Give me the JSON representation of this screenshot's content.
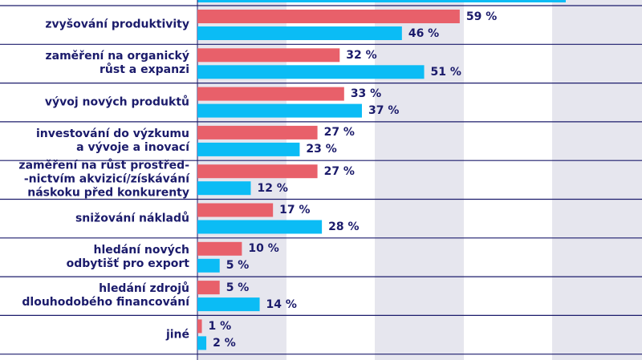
{
  "chart_data": {
    "type": "bar",
    "orientation": "horizontal",
    "categories": [
      "zvyšování produktivity",
      "zaměření na organický\nrůst a expanzi",
      "vývoj nových produktů",
      "investování do výzkumu\na vývoje a inovací",
      "zaměření na růst prostřed-\n-nictvím akvizicí/získávání\nnáskoku před konkurenty",
      "snižování nákladů",
      "hledání nových\nodbytišť pro export",
      "hledání zdrojů\ndlouhodobého financování",
      "jiné"
    ],
    "series": [
      {
        "color": "#e8606a",
        "values": [
          59,
          32,
          33,
          27,
          27,
          17,
          10,
          5,
          1
        ],
        "value_labels": [
          "59 %",
          "32 %",
          "33 %",
          "27 %",
          "27 %",
          "17 %",
          "10 %",
          "5 %",
          "1 %"
        ]
      },
      {
        "color": "#0bbcf5",
        "values": [
          46,
          51,
          37,
          23,
          12,
          28,
          5,
          14,
          2
        ],
        "value_labels": [
          "46 %",
          "51 %",
          "37 %",
          "23 %",
          "12 %",
          "28 %",
          "5 %",
          "14 %",
          "2 %"
        ]
      }
    ],
    "xlim": [
      0,
      100
    ]
  }
}
